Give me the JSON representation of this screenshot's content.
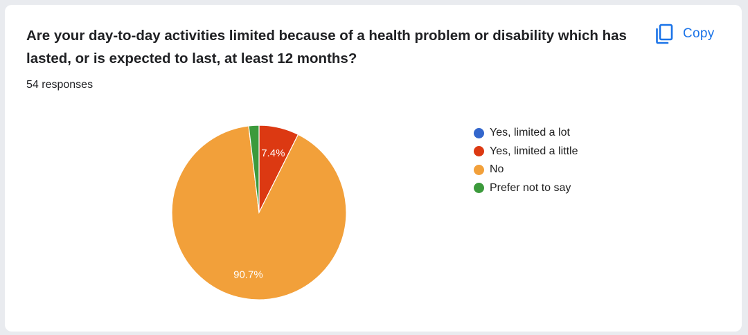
{
  "card": {
    "question": "Are your day-to-day activities limited because of a health problem or disability which has lasted, or is expected to last, at least 12 months?",
    "responses": "54 responses",
    "copy_label": "Copy",
    "copy_icon": "copy-icon"
  },
  "chart_data": {
    "type": "pie",
    "title": "",
    "slices": [
      {
        "label": "Yes, limited a lot",
        "value": 0,
        "color": "#3366cc",
        "display": ""
      },
      {
        "label": "Yes, limited a little",
        "value": 7.4,
        "color": "#dc3912",
        "display": "7.4%"
      },
      {
        "label": "No",
        "value": 90.7,
        "color": "#f2a03a",
        "display": "90.7%"
      },
      {
        "label": "Prefer not to say",
        "value": 1.9,
        "color": "#3c9a3c",
        "display": ""
      }
    ],
    "legend_position": "right",
    "start_angle_deg": 90,
    "direction": "clockwise"
  }
}
